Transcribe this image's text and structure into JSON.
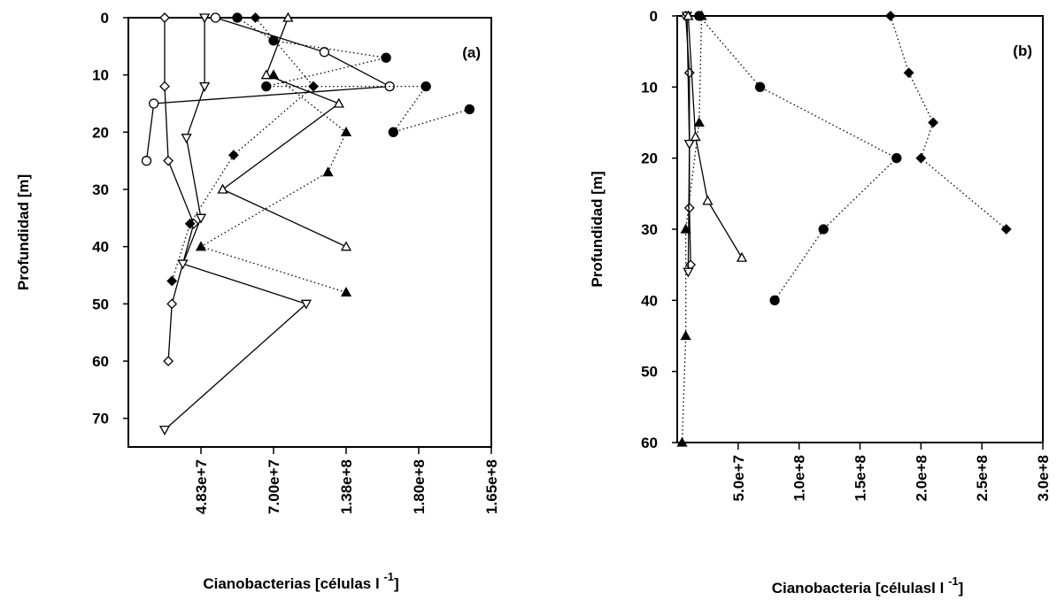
{
  "chart_data": [
    {
      "panel_label": "(a)",
      "type": "line",
      "ylabel": "Profundidad [m]",
      "xlabel_main": "Cianobacterias [células l",
      "xlabel_sup": "-1",
      "xlabel_close": "]",
      "y_reversed": true,
      "ylim": [
        0,
        75
      ],
      "y_ticks": [
        "0",
        "10",
        "20",
        "30",
        "40",
        "50",
        "60",
        "70"
      ],
      "x_tick_labels": [
        "4.83e+7",
        "7.00e+7",
        "1.38e+8",
        "1.80e+8",
        "1.65e+8"
      ],
      "x_tick_positions": [
        0.2,
        0.4,
        0.6,
        0.8,
        1.0
      ],
      "x_note": "x positions are fractions of the printed axis span (tick labels are non-uniform)",
      "grid": false,
      "series": [
        {
          "marker": "diamond-open",
          "line": "solid",
          "points": [
            [
              0.1,
              0
            ],
            [
              0.1,
              12
            ],
            [
              0.11,
              25
            ],
            [
              0.18,
              36
            ],
            [
              0.12,
              50
            ],
            [
              0.11,
              60
            ]
          ]
        },
        {
          "marker": "circle-open",
          "line": "solid",
          "points": [
            [
              0.24,
              0
            ],
            [
              0.54,
              6
            ],
            [
              0.72,
              12
            ],
            [
              0.07,
              15
            ],
            [
              0.05,
              25
            ]
          ]
        },
        {
          "marker": "triangle-down-open",
          "line": "solid",
          "points": [
            [
              0.21,
              0
            ],
            [
              0.21,
              12
            ],
            [
              0.16,
              21
            ],
            [
              0.2,
              35
            ],
            [
              0.15,
              43
            ],
            [
              0.49,
              50
            ],
            [
              0.1,
              72
            ]
          ]
        },
        {
          "marker": "triangle-up-open",
          "line": "solid",
          "points": [
            [
              0.44,
              0
            ],
            [
              0.38,
              10
            ],
            [
              0.58,
              15
            ],
            [
              0.26,
              30
            ],
            [
              0.6,
              40
            ]
          ]
        },
        {
          "marker": "circle-filled",
          "line": "dotted",
          "points": [
            [
              0.3,
              0
            ],
            [
              0.4,
              4
            ],
            [
              0.71,
              7
            ],
            [
              0.38,
              12
            ],
            [
              0.82,
              12
            ],
            [
              0.73,
              20
            ],
            [
              0.94,
              16
            ]
          ]
        },
        {
          "marker": "diamond-filled",
          "line": "dotted",
          "points": [
            [
              0.35,
              0
            ],
            [
              0.51,
              12
            ],
            [
              0.29,
              24
            ],
            [
              0.17,
              36
            ],
            [
              0.12,
              46
            ]
          ]
        },
        {
          "marker": "triangle-up-filled",
          "line": "dotted",
          "points": [
            [
              0.4,
              10
            ],
            [
              0.6,
              20
            ],
            [
              0.55,
              27
            ],
            [
              0.2,
              40
            ],
            [
              0.6,
              48
            ]
          ]
        }
      ]
    },
    {
      "panel_label": "(b)",
      "type": "line",
      "ylabel": "Profundidad [m]",
      "xlabel_main": "Cianobacteria [célulasl l",
      "xlabel_sup": "-1",
      "xlabel_close": "]",
      "y_reversed": true,
      "ylim": [
        0,
        60
      ],
      "y_ticks": [
        "0",
        "10",
        "20",
        "30",
        "40",
        "50",
        "60"
      ],
      "x_tick_labels": [
        "5.0e+7",
        "1.0e+8",
        "1.5e+8",
        "2.0e+8",
        "2.5e+8",
        "3.0e+8"
      ],
      "x_tick_positions": [
        50000000,
        100000000,
        150000000,
        200000000,
        250000000,
        300000000
      ],
      "xlim": [
        0,
        300000000
      ],
      "grid": false,
      "series": [
        {
          "marker": "diamond-open",
          "line": "solid",
          "points": [
            [
              7000000,
              0
            ],
            [
              10000000,
              8
            ],
            [
              10000000,
              27
            ],
            [
              11000000,
              35
            ]
          ]
        },
        {
          "marker": "triangle-down-open",
          "line": "solid",
          "points": [
            [
              8000000,
              0
            ],
            [
              10000000,
              18
            ],
            [
              9000000,
              36
            ]
          ]
        },
        {
          "marker": "triangle-up-open",
          "line": "solid",
          "points": [
            [
              9000000,
              0
            ],
            [
              15000000,
              17
            ],
            [
              25000000,
              26
            ],
            [
              53000000,
              34
            ]
          ]
        },
        {
          "marker": "circle-filled",
          "line": "dotted",
          "points": [
            [
              18000000,
              0
            ],
            [
              68000000,
              10
            ],
            [
              180000000,
              20
            ],
            [
              120000000,
              30
            ],
            [
              80000000,
              40
            ]
          ]
        },
        {
          "marker": "diamond-filled",
          "line": "dotted",
          "points": [
            [
              175000000,
              0
            ],
            [
              190000000,
              8
            ],
            [
              210000000,
              15
            ],
            [
              200000000,
              20
            ],
            [
              270000000,
              30
            ]
          ]
        },
        {
          "marker": "triangle-up-filled",
          "line": "dotted",
          "points": [
            [
              20000000,
              0
            ],
            [
              18000000,
              15
            ],
            [
              7000000,
              30
            ],
            [
              7000000,
              45
            ],
            [
              4000000,
              60
            ]
          ]
        }
      ]
    }
  ]
}
